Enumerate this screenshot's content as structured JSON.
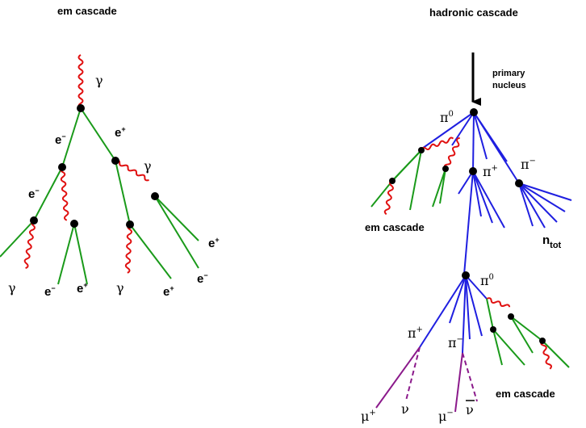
{
  "titles": {
    "left": "em cascade",
    "right": "hadronic cascade"
  },
  "labels": {
    "primary_nucleus_line1": "primary",
    "primary_nucleus_line2": "nucleus",
    "em_cascade_left": "em cascade",
    "em_cascade_right": "em cascade",
    "n": "n",
    "tot": "tot",
    "gamma": "γ",
    "e": "e",
    "pi": "π",
    "mu": "μ",
    "nu": "ν",
    "plus": "+",
    "minus": "−",
    "zero": "0"
  },
  "colors": {
    "electromagnetic_track": "#1a9a1a",
    "hadron_track": "#1f1fe0",
    "muon_neutrino_track": "#8b1a8b",
    "photon": "#e01010"
  }
}
